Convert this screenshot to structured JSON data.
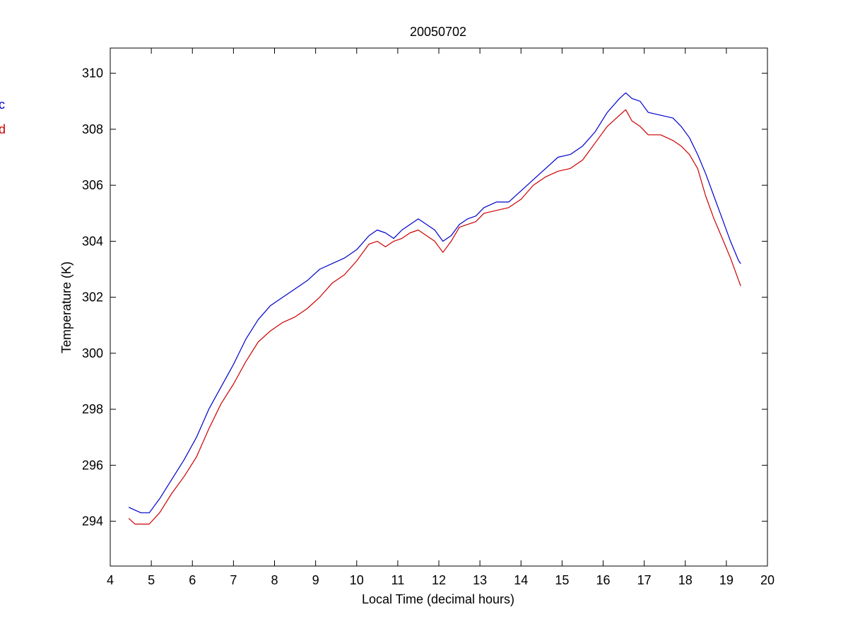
{
  "chart_data": {
    "type": "line",
    "title": "20050702",
    "xlabel": "Local Time (decimal hours)",
    "ylabel": "Temperature (K)",
    "xlim": [
      4,
      20
    ],
    "ylim": [
      292.4,
      310.9
    ],
    "xticks": [
      4,
      5,
      6,
      7,
      8,
      9,
      10,
      11,
      12,
      13,
      14,
      15,
      16,
      17,
      18,
      19,
      20
    ],
    "yticks": [
      294,
      296,
      298,
      300,
      302,
      304,
      306,
      308,
      310
    ],
    "grid": false,
    "legend": {
      "placement": "left, outside plot area (cropped)",
      "entries": [
        "c",
        "d"
      ]
    },
    "series": [
      {
        "name": "c",
        "color": "#0000cc",
        "x": [
          4.45,
          4.6,
          4.75,
          4.95,
          5.2,
          5.5,
          5.8,
          6.1,
          6.4,
          6.7,
          7.0,
          7.3,
          7.6,
          7.9,
          8.2,
          8.5,
          8.8,
          9.1,
          9.4,
          9.7,
          10.0,
          10.3,
          10.5,
          10.7,
          10.9,
          11.1,
          11.3,
          11.5,
          11.7,
          11.9,
          12.1,
          12.3,
          12.5,
          12.7,
          12.9,
          13.1,
          13.4,
          13.7,
          14.0,
          14.3,
          14.6,
          14.9,
          15.2,
          15.5,
          15.8,
          16.1,
          16.4,
          16.55,
          16.7,
          16.9,
          17.1,
          17.4,
          17.7,
          17.9,
          18.1,
          18.3,
          18.5,
          18.7,
          18.9,
          19.1,
          19.3,
          19.35
        ],
        "values": [
          294.5,
          294.4,
          294.3,
          294.3,
          294.8,
          295.5,
          296.2,
          297.0,
          298.0,
          298.8,
          299.6,
          300.5,
          301.2,
          301.7,
          302.0,
          302.3,
          302.6,
          303.0,
          303.2,
          303.4,
          303.7,
          304.2,
          304.4,
          304.3,
          304.1,
          304.4,
          304.6,
          304.8,
          304.6,
          304.4,
          304.0,
          304.2,
          304.6,
          304.8,
          304.9,
          305.2,
          305.4,
          305.4,
          305.8,
          306.2,
          306.6,
          307.0,
          307.1,
          307.4,
          307.9,
          308.6,
          309.1,
          309.3,
          309.1,
          309.0,
          308.6,
          308.5,
          308.4,
          308.1,
          307.7,
          307.1,
          306.4,
          305.6,
          304.8,
          304.0,
          303.3,
          303.2
        ],
        "values_note": "approximate, read from axes"
      },
      {
        "name": "d",
        "color": "#cc0000",
        "x": [
          4.45,
          4.6,
          4.75,
          4.95,
          5.2,
          5.5,
          5.8,
          6.1,
          6.4,
          6.7,
          7.0,
          7.3,
          7.6,
          7.9,
          8.2,
          8.5,
          8.8,
          9.1,
          9.4,
          9.7,
          10.0,
          10.3,
          10.5,
          10.7,
          10.9,
          11.1,
          11.3,
          11.5,
          11.7,
          11.9,
          12.1,
          12.3,
          12.5,
          12.7,
          12.9,
          13.1,
          13.4,
          13.7,
          14.0,
          14.3,
          14.6,
          14.9,
          15.2,
          15.5,
          15.8,
          16.1,
          16.4,
          16.55,
          16.7,
          16.9,
          17.1,
          17.4,
          17.7,
          17.9,
          18.1,
          18.3,
          18.5,
          18.7,
          18.9,
          19.1,
          19.3,
          19.35
        ],
        "values": [
          294.1,
          293.9,
          293.9,
          293.9,
          294.3,
          295.0,
          295.6,
          296.3,
          297.3,
          298.2,
          298.9,
          299.7,
          300.4,
          300.8,
          301.1,
          301.3,
          301.6,
          302.0,
          302.5,
          302.8,
          303.3,
          303.9,
          304.0,
          303.8,
          304.0,
          304.1,
          304.3,
          304.4,
          304.2,
          304.0,
          303.6,
          304.0,
          304.5,
          304.6,
          304.7,
          305.0,
          305.1,
          305.2,
          305.5,
          306.0,
          306.3,
          306.5,
          306.6,
          306.9,
          307.5,
          308.1,
          308.5,
          308.7,
          308.3,
          308.1,
          307.8,
          307.8,
          307.6,
          307.4,
          307.1,
          306.6,
          305.6,
          304.8,
          304.1,
          303.4,
          302.6,
          302.4
        ]
      }
    ]
  }
}
